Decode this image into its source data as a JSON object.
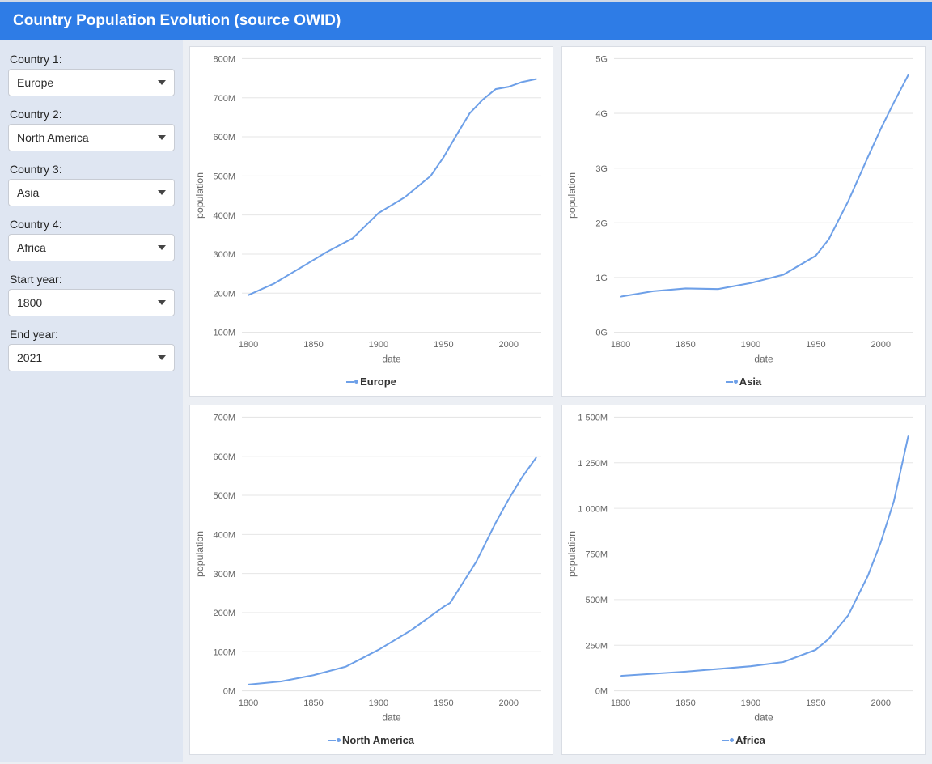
{
  "header": {
    "title": "Country Population Evolution (source OWID)"
  },
  "sidebar": {
    "controls": [
      {
        "label": "Country 1:",
        "value": "Europe"
      },
      {
        "label": "Country 2:",
        "value": "North America"
      },
      {
        "label": "Country 3:",
        "value": "Asia"
      },
      {
        "label": "Country 4:",
        "value": "Africa"
      },
      {
        "label": "Start year:",
        "value": "1800"
      },
      {
        "label": "End year:",
        "value": "2021"
      }
    ]
  },
  "chart_common": {
    "line_color": "#6ea0e8",
    "grid_color": "#e6e6e6",
    "axis_text_color": "#666666",
    "background_color": "#ffffff",
    "xlabel": "date",
    "ylabel": "population",
    "label_fontsize": 12,
    "tick_fontsize": 11,
    "x_ticks": [
      1800,
      1850,
      1900,
      1950,
      2000
    ],
    "xlim": [
      1795,
      2025
    ],
    "line_width": 2,
    "marker": "circle",
    "marker_size": 0
  },
  "charts": [
    {
      "series_name": "Europe",
      "ylim": [
        100,
        800
      ],
      "ytick_step": 100,
      "ysuffix": "M",
      "years": [
        1800,
        1820,
        1840,
        1860,
        1880,
        1900,
        1920,
        1940,
        1950,
        1960,
        1970,
        1980,
        1990,
        2000,
        2010,
        2021
      ],
      "values": [
        195,
        225,
        265,
        305,
        340,
        405,
        445,
        500,
        548,
        605,
        660,
        695,
        722,
        728,
        740,
        748
      ]
    },
    {
      "series_name": "Asia",
      "ylim": [
        0,
        5
      ],
      "ytick_step": 1,
      "ysuffix": "G",
      "years": [
        1800,
        1825,
        1850,
        1875,
        1900,
        1925,
        1950,
        1960,
        1975,
        1990,
        2000,
        2010,
        2021
      ],
      "values": [
        0.65,
        0.75,
        0.8,
        0.79,
        0.9,
        1.05,
        1.4,
        1.7,
        2.4,
        3.2,
        3.72,
        4.2,
        4.7
      ]
    },
    {
      "series_name": "North America",
      "ylim": [
        0,
        700
      ],
      "ytick_step": 100,
      "ysuffix": "M",
      "years": [
        1800,
        1825,
        1850,
        1875,
        1900,
        1925,
        1950,
        1955,
        1975,
        1990,
        2000,
        2010,
        2021
      ],
      "values": [
        16,
        24,
        40,
        62,
        105,
        155,
        215,
        225,
        330,
        430,
        490,
        545,
        596
      ]
    },
    {
      "series_name": "Africa",
      "ylim": [
        0,
        1500
      ],
      "ytick_step": 250,
      "ysuffix": "M",
      "ytick_thousand_space": true,
      "years": [
        1800,
        1850,
        1900,
        1925,
        1950,
        1960,
        1975,
        1990,
        2000,
        2010,
        2021
      ],
      "values": [
        82,
        105,
        135,
        158,
        225,
        285,
        415,
        630,
        815,
        1040,
        1395
      ]
    }
  ]
}
